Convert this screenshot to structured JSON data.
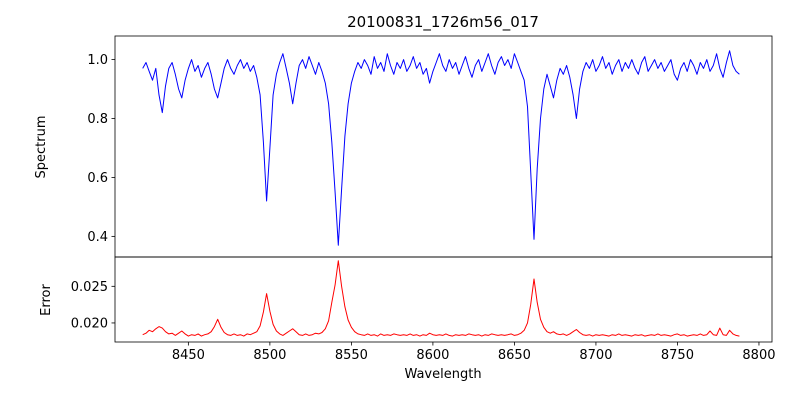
{
  "figure": {
    "background": "#ffffff",
    "axis_color": "#000000"
  },
  "chart_data": {
    "type": "line",
    "title": "20100831_1726m56_017",
    "xlabel": "Wavelength",
    "grid": false,
    "legend": "none",
    "xaxis": {
      "lim": [
        8405,
        8808
      ],
      "ticks": [
        8450,
        8500,
        8550,
        8600,
        8650,
        8700,
        8750,
        8800
      ],
      "tick_labels": [
        "8450",
        "8500",
        "8550",
        "8600",
        "8650",
        "8700",
        "8750",
        "8800"
      ]
    },
    "panels": [
      {
        "ylabel": "Spectrum",
        "ylim": [
          0.33,
          1.08
        ],
        "yticks": [
          0.4,
          0.6,
          0.8,
          1.0
        ],
        "ytick_labels": [
          "0.4",
          "0.6",
          "0.8",
          "1.0"
        ],
        "series": {
          "name": "spectrum",
          "color": "#0000ff",
          "x_start": 8422,
          "x_step": 2,
          "values": [
            0.97,
            0.99,
            0.96,
            0.93,
            0.97,
            0.88,
            0.82,
            0.91,
            0.97,
            0.99,
            0.95,
            0.9,
            0.87,
            0.93,
            0.97,
            1.0,
            0.96,
            0.98,
            0.94,
            0.97,
            0.99,
            0.95,
            0.9,
            0.87,
            0.92,
            0.97,
            1.0,
            0.97,
            0.95,
            0.98,
            1.0,
            0.97,
            0.99,
            0.96,
            0.98,
            0.94,
            0.88,
            0.72,
            0.52,
            0.7,
            0.88,
            0.95,
            0.99,
            1.02,
            0.97,
            0.92,
            0.85,
            0.92,
            0.98,
            1.0,
            0.97,
            1.01,
            0.98,
            0.95,
            0.99,
            0.96,
            0.92,
            0.85,
            0.72,
            0.55,
            0.37,
            0.56,
            0.74,
            0.85,
            0.92,
            0.96,
            0.99,
            0.97,
            1.0,
            0.98,
            0.95,
            1.01,
            0.97,
            0.99,
            0.96,
            1.02,
            0.98,
            0.95,
            0.99,
            0.97,
            1.0,
            0.96,
            0.98,
            1.01,
            0.97,
            0.99,
            0.95,
            0.97,
            0.92,
            0.96,
            0.99,
            1.02,
            0.98,
            0.96,
            1.0,
            0.97,
            0.99,
            0.95,
            0.98,
            1.01,
            0.97,
            0.94,
            0.98,
            1.0,
            0.96,
            0.99,
            1.02,
            0.98,
            0.95,
            0.99,
            1.01,
            0.98,
            1.0,
            0.97,
            1.02,
            0.99,
            0.96,
            0.93,
            0.84,
            0.62,
            0.39,
            0.63,
            0.8,
            0.9,
            0.95,
            0.91,
            0.87,
            0.93,
            0.97,
            0.95,
            0.98,
            0.94,
            0.88,
            0.8,
            0.9,
            0.96,
            0.99,
            0.97,
            1.0,
            0.96,
            0.98,
            1.01,
            0.97,
            0.99,
            0.95,
            0.98,
            1.0,
            0.96,
            0.99,
            0.97,
            1.0,
            0.97,
            0.95,
            0.99,
            1.01,
            0.96,
            0.98,
            1.0,
            0.97,
            0.99,
            0.96,
            0.98,
            1.0,
            0.95,
            0.93,
            0.97,
            0.99,
            0.96,
            1.0,
            0.98,
            0.95,
            0.99,
            0.97,
            1.0,
            0.96,
            0.98,
            1.02,
            0.97,
            0.94,
            0.99,
            1.03,
            0.98,
            0.96,
            0.95
          ]
        }
      },
      {
        "ylabel": "Error",
        "ylim": [
          0.0174,
          0.029
        ],
        "yticks": [
          0.02,
          0.025
        ],
        "ytick_labels": [
          "0.020",
          "0.025"
        ],
        "series": {
          "name": "error",
          "color": "#ff0000",
          "x_start": 8422,
          "x_step": 2,
          "values": [
            0.0184,
            0.0186,
            0.019,
            0.0188,
            0.0192,
            0.0195,
            0.0193,
            0.0188,
            0.0185,
            0.0186,
            0.0183,
            0.0186,
            0.0189,
            0.0185,
            0.0182,
            0.0184,
            0.0183,
            0.0185,
            0.0182,
            0.0184,
            0.0185,
            0.0188,
            0.0195,
            0.0205,
            0.0194,
            0.0187,
            0.0184,
            0.0183,
            0.0185,
            0.0183,
            0.0184,
            0.0182,
            0.0185,
            0.0184,
            0.0186,
            0.0188,
            0.0196,
            0.0215,
            0.024,
            0.0216,
            0.0198,
            0.0189,
            0.0185,
            0.0183,
            0.0186,
            0.0189,
            0.0192,
            0.0188,
            0.0184,
            0.0183,
            0.0185,
            0.0183,
            0.0184,
            0.0186,
            0.0185,
            0.0187,
            0.0192,
            0.0203,
            0.0228,
            0.0252,
            0.0285,
            0.025,
            0.0222,
            0.0204,
            0.0194,
            0.0188,
            0.0185,
            0.0184,
            0.0183,
            0.0185,
            0.0183,
            0.0184,
            0.0182,
            0.0185,
            0.0183,
            0.0184,
            0.0183,
            0.0185,
            0.0184,
            0.0183,
            0.0184,
            0.0183,
            0.0185,
            0.0183,
            0.0184,
            0.0182,
            0.0184,
            0.0183,
            0.0186,
            0.0184,
            0.0183,
            0.0184,
            0.0183,
            0.0185,
            0.0183,
            0.0182,
            0.0184,
            0.0183,
            0.0184,
            0.0183,
            0.0185,
            0.0184,
            0.0183,
            0.0184,
            0.0182,
            0.0184,
            0.0183,
            0.0185,
            0.0184,
            0.0183,
            0.0184,
            0.0183,
            0.0184,
            0.0185,
            0.0183,
            0.0184,
            0.0186,
            0.019,
            0.02,
            0.0225,
            0.026,
            0.0228,
            0.0205,
            0.0194,
            0.0188,
            0.0186,
            0.0188,
            0.0185,
            0.0184,
            0.0185,
            0.0183,
            0.0185,
            0.0188,
            0.0191,
            0.0187,
            0.0184,
            0.0183,
            0.0184,
            0.0182,
            0.0184,
            0.0183,
            0.0184,
            0.0183,
            0.0182,
            0.0184,
            0.0183,
            0.0185,
            0.0183,
            0.0184,
            0.0183,
            0.0182,
            0.0184,
            0.0183,
            0.0184,
            0.0182,
            0.0183,
            0.0184,
            0.0183,
            0.0185,
            0.0183,
            0.0184,
            0.0183,
            0.0182,
            0.0184,
            0.0185,
            0.0183,
            0.0184,
            0.0182,
            0.0183,
            0.0184,
            0.0183,
            0.0185,
            0.0183,
            0.0184,
            0.0189,
            0.0184,
            0.0183,
            0.0193,
            0.0184,
            0.0183,
            0.019,
            0.0185,
            0.0183,
            0.0182
          ]
        }
      }
    ]
  }
}
